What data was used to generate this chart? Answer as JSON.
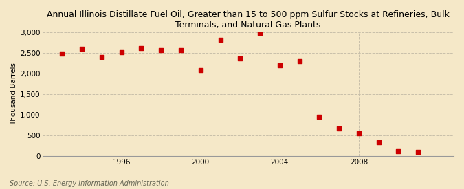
{
  "title": "Annual Illinois Distillate Fuel Oil, Greater than 15 to 500 ppm Sulfur Stocks at Refineries, Bulk\nTerminals, and Natural Gas Plants",
  "ylabel": "Thousand Barrels",
  "source": "Source: U.S. Energy Information Administration",
  "background_color": "#f5e8c8",
  "plot_background_color": "#f5e8c8",
  "marker_color": "#cc0000",
  "marker": "s",
  "marker_size": 4,
  "years": [
    1993,
    1994,
    1995,
    1996,
    1997,
    1998,
    1999,
    2000,
    2001,
    2002,
    2003,
    2004,
    2005,
    2006,
    2007,
    2008,
    2009,
    2010,
    2011
  ],
  "values": [
    2480,
    2590,
    2390,
    2510,
    2610,
    2570,
    2570,
    2080,
    2820,
    2360,
    2990,
    2200,
    2300,
    950,
    660,
    540,
    330,
    110,
    100
  ],
  "ylim": [
    0,
    3000
  ],
  "yticks": [
    0,
    500,
    1000,
    1500,
    2000,
    2500,
    3000
  ],
  "xtick_years": [
    1996,
    2000,
    2004,
    2008
  ],
  "grid_color": "#c8bfaa",
  "grid_style": "--",
  "title_fontsize": 9,
  "label_fontsize": 7.5,
  "source_fontsize": 7,
  "xlim_left": 1992.0,
  "xlim_right": 2012.8
}
